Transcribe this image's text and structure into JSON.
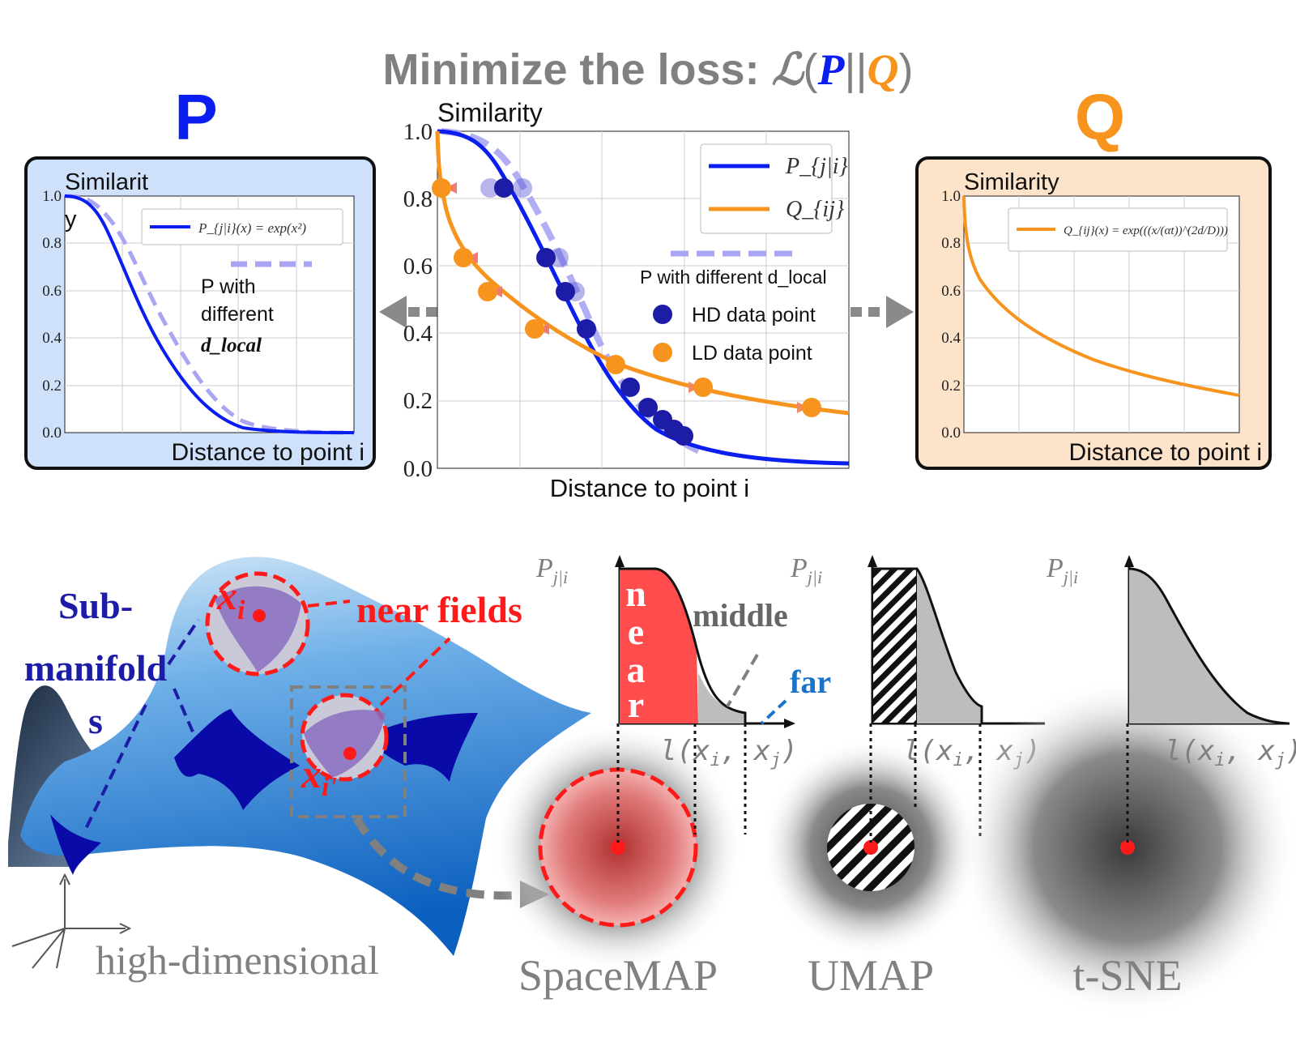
{
  "title": {
    "prefix": "Minimize the loss: ",
    "script_L": "ℒ",
    "open": "(",
    "P": "P",
    "bars": "||",
    "Q": "Q",
    "close": ")"
  },
  "colors": {
    "blue": "#0a1ef0",
    "orange": "#f7941d",
    "lavender": "#a9a5f2",
    "grey_text": "#808080",
    "panel_p_fill": "#cfe0fb",
    "panel_q_fill": "#fde3c9",
    "red": "#ff1a1a",
    "navy": "#1c1ca6"
  },
  "panel_p": {
    "big_letter": "P",
    "ylabel_line1": "Similarit",
    "ylabel_line2": "y",
    "xlabel": "Distance to point i",
    "legend": "P_{j|i}(x) = exp(x²)",
    "annotation_1": "P with",
    "annotation_2": "different",
    "annotation_3": "d_local",
    "yticks": [
      "0.0",
      "0.2",
      "0.4",
      "0.6",
      "0.8",
      "1.0"
    ]
  },
  "panel_center": {
    "ylabel": "Similarity",
    "xlabel": "Distance to point i",
    "legend_p": "P_{j|i}",
    "legend_q": "Q_{ij}",
    "legend_dlocal": "P with different d_local",
    "legend_hd": "HD data point",
    "legend_ld": "LD data point",
    "yticks": [
      "0.0",
      "0.2",
      "0.4",
      "0.6",
      "0.8",
      "1.0"
    ]
  },
  "panel_q": {
    "big_letter": "Q",
    "ylabel": "Similarity",
    "xlabel": "Distance to point i",
    "legend": "Q_{ij}(x) = exp(((x/(αt))^(2d/D)))",
    "yticks": [
      "0.0",
      "0.2",
      "0.4",
      "0.6",
      "0.8",
      "1.0"
    ]
  },
  "bottom": {
    "submanifolds_1": "Sub-",
    "submanifolds_2": "manifold",
    "submanifolds_3": "s",
    "near_fields": "near fields",
    "x_i": "x",
    "x_i_sub": "i",
    "x_ii": "x",
    "x_ii_sub": "i'",
    "high_dimensional": "high-dimensional",
    "near_letters": [
      "n",
      "e",
      "a",
      "r"
    ],
    "middle": "middle",
    "far": "far",
    "p_label": "P",
    "p_sub": "j|i",
    "l_label": "l(x",
    "l_sub_i": "i",
    "l_comma": ", x",
    "l_sub_j": "j",
    "l_close": ")",
    "methods": [
      "SpaceMAP",
      "UMAP",
      "t-SNE"
    ]
  }
}
